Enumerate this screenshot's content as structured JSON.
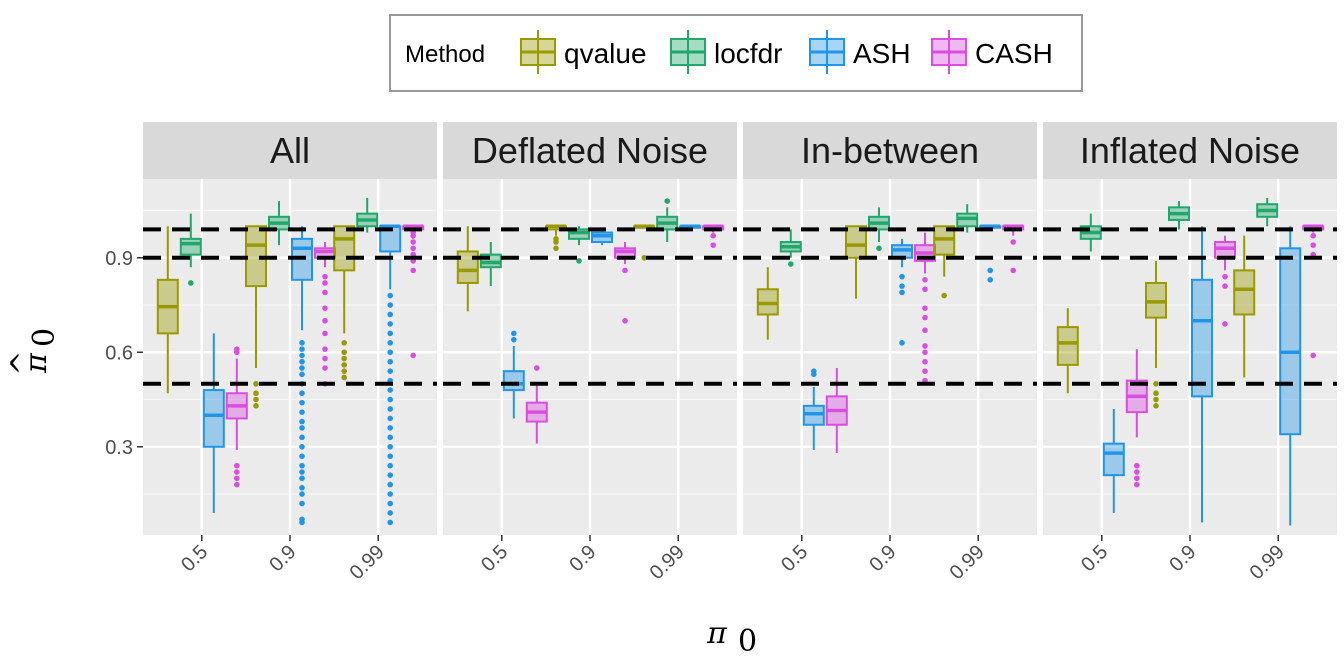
{
  "chart_data": {
    "type": "boxplot",
    "legend": {
      "title": "Method",
      "position": "top",
      "entries": [
        {
          "name": "qvalue",
          "color": "#999900"
        },
        {
          "name": "locfdr",
          "color": "#1fa86a"
        },
        {
          "name": "ASH",
          "color": "#2196e8"
        },
        {
          "name": "CASH",
          "color": "#d94ee0"
        }
      ]
    },
    "xlabel": "π",
    "xlabel_sub": "0",
    "ylabel": "π",
    "ylabel_hat": "^",
    "ylabel_sub": "0",
    "ylim": [
      0.02,
      1.15
    ],
    "yticks": [
      0.3,
      0.6,
      0.9
    ],
    "ytick_labels": [
      "0.3",
      "0.6",
      "0.9"
    ],
    "x_categories": [
      "0.5",
      "0.9",
      "0.99"
    ],
    "reference_lines": [
      0.5,
      0.9,
      0.99
    ],
    "panels": [
      {
        "name": "All",
        "boxes": [
          {
            "x": "0.5",
            "method": "qvalue",
            "min": 0.47,
            "q1": 0.66,
            "median": 0.745,
            "q3": 0.83,
            "max": 1.0,
            "outliers": []
          },
          {
            "x": "0.5",
            "method": "locfdr",
            "min": 0.87,
            "q1": 0.91,
            "median": 0.945,
            "q3": 0.96,
            "max": 1.04,
            "outliers": [
              0.82
            ]
          },
          {
            "x": "0.5",
            "method": "ASH",
            "min": 0.09,
            "q1": 0.3,
            "median": 0.4,
            "q3": 0.48,
            "max": 0.66,
            "outliers": []
          },
          {
            "x": "0.5",
            "method": "CASH",
            "min": 0.29,
            "q1": 0.39,
            "median": 0.43,
            "q3": 0.47,
            "max": 0.58,
            "outliers": [
              0.61,
              0.6,
              0.24,
              0.22,
              0.2,
              0.18
            ]
          },
          {
            "x": "0.9",
            "method": "qvalue",
            "min": 0.55,
            "q1": 0.81,
            "median": 0.94,
            "q3": 1.0,
            "max": 1.0,
            "outliers": [
              0.5,
              0.47,
              0.45,
              0.43
            ]
          },
          {
            "x": "0.9",
            "method": "locfdr",
            "min": 0.94,
            "q1": 0.99,
            "median": 1.01,
            "q3": 1.03,
            "max": 1.08,
            "outliers": []
          },
          {
            "x": "0.9",
            "method": "ASH",
            "min": 0.67,
            "q1": 0.83,
            "median": 0.93,
            "q3": 0.96,
            "max": 1.0,
            "outliers": [
              0.63,
              0.61,
              0.59,
              0.57,
              0.55,
              0.53,
              0.5,
              0.47,
              0.44,
              0.41,
              0.38,
              0.36,
              0.33,
              0.3,
              0.27,
              0.24,
              0.22,
              0.2,
              0.17,
              0.15,
              0.12,
              0.07,
              0.06
            ]
          },
          {
            "x": "0.9",
            "method": "CASH",
            "min": 0.87,
            "q1": 0.9,
            "median": 0.92,
            "q3": 0.93,
            "max": 0.95,
            "outliers": [
              0.84,
              0.82,
              0.79,
              0.74,
              0.7,
              0.66,
              0.61,
              0.58,
              0.55,
              0.5
            ]
          },
          {
            "x": "0.99",
            "method": "qvalue",
            "min": 0.66,
            "q1": 0.86,
            "median": 0.96,
            "q3": 1.0,
            "max": 1.0,
            "outliers": [
              0.63,
              0.6,
              0.58,
              0.56,
              0.54,
              0.52
            ]
          },
          {
            "x": "0.99",
            "method": "locfdr",
            "min": 0.98,
            "q1": 1.0,
            "median": 1.02,
            "q3": 1.04,
            "max": 1.09,
            "outliers": []
          },
          {
            "x": "0.99",
            "method": "ASH",
            "min": 0.8,
            "q1": 0.92,
            "median": 1.0,
            "q3": 1.0,
            "max": 1.0,
            "outliers": [
              0.78,
              0.75,
              0.72,
              0.69,
              0.66,
              0.63,
              0.6,
              0.57,
              0.54,
              0.51,
              0.48,
              0.45,
              0.42,
              0.39,
              0.36,
              0.33,
              0.3,
              0.27,
              0.24,
              0.21,
              0.18,
              0.15,
              0.12,
              0.09,
              0.06
            ]
          },
          {
            "x": "0.99",
            "method": "CASH",
            "min": 0.96,
            "q1": 0.99,
            "median": 1.0,
            "q3": 1.0,
            "max": 1.0,
            "outliers": [
              0.98,
              0.97,
              0.95,
              0.93,
              0.91,
              0.89,
              0.86,
              0.59
            ]
          }
        ]
      },
      {
        "name": "Deflated Noise",
        "boxes": [
          {
            "x": "0.5",
            "method": "qvalue",
            "min": 0.73,
            "q1": 0.82,
            "median": 0.86,
            "q3": 0.92,
            "max": 1.0,
            "outliers": []
          },
          {
            "x": "0.5",
            "method": "locfdr",
            "min": 0.81,
            "q1": 0.87,
            "median": 0.885,
            "q3": 0.91,
            "max": 0.95,
            "outliers": []
          },
          {
            "x": "0.5",
            "method": "ASH",
            "min": 0.39,
            "q1": 0.48,
            "median": 0.5,
            "q3": 0.54,
            "max": 0.62,
            "outliers": [
              0.66,
              0.64
            ]
          },
          {
            "x": "0.5",
            "method": "CASH",
            "min": 0.31,
            "q1": 0.38,
            "median": 0.41,
            "q3": 0.44,
            "max": 0.5,
            "outliers": [
              0.55
            ]
          },
          {
            "x": "0.9",
            "method": "qvalue",
            "min": 0.97,
            "q1": 0.99,
            "median": 1.0,
            "q3": 1.0,
            "max": 1.0,
            "outliers": [
              0.96,
              0.95,
              0.93
            ]
          },
          {
            "x": "0.9",
            "method": "locfdr",
            "min": 0.94,
            "q1": 0.96,
            "median": 0.98,
            "q3": 0.99,
            "max": 1.0,
            "outliers": [
              0.89
            ]
          },
          {
            "x": "0.9",
            "method": "ASH",
            "min": 0.94,
            "q1": 0.95,
            "median": 0.97,
            "q3": 0.98,
            "max": 0.99,
            "outliers": []
          },
          {
            "x": "0.9",
            "method": "CASH",
            "min": 0.88,
            "q1": 0.9,
            "median": 0.92,
            "q3": 0.93,
            "max": 0.95,
            "outliers": [
              0.86,
              0.7
            ]
          },
          {
            "x": "0.99",
            "method": "qvalue",
            "min": 1.0,
            "q1": 1.0,
            "median": 1.0,
            "q3": 1.0,
            "max": 1.0,
            "outliers": [
              0.9
            ]
          },
          {
            "x": "0.99",
            "method": "locfdr",
            "min": 0.95,
            "q1": 0.99,
            "median": 1.01,
            "q3": 1.03,
            "max": 1.06,
            "outliers": [
              1.08
            ]
          },
          {
            "x": "0.99",
            "method": "ASH",
            "min": 0.99,
            "q1": 1.0,
            "median": 1.0,
            "q3": 1.0,
            "max": 1.0,
            "outliers": []
          },
          {
            "x": "0.99",
            "method": "CASH",
            "min": 0.98,
            "q1": 0.99,
            "median": 1.0,
            "q3": 1.0,
            "max": 1.0,
            "outliers": [
              0.97,
              0.94
            ]
          }
        ]
      },
      {
        "name": "In-between",
        "boxes": [
          {
            "x": "0.5",
            "method": "qvalue",
            "min": 0.64,
            "q1": 0.72,
            "median": 0.755,
            "q3": 0.8,
            "max": 0.87,
            "outliers": []
          },
          {
            "x": "0.5",
            "method": "locfdr",
            "min": 0.9,
            "q1": 0.92,
            "median": 0.935,
            "q3": 0.95,
            "max": 0.99,
            "outliers": [
              0.88
            ]
          },
          {
            "x": "0.5",
            "method": "ASH",
            "min": 0.29,
            "q1": 0.37,
            "median": 0.405,
            "q3": 0.43,
            "max": 0.49,
            "outliers": [
              0.54,
              0.53
            ]
          },
          {
            "x": "0.5",
            "method": "CASH",
            "min": 0.28,
            "q1": 0.37,
            "median": 0.415,
            "q3": 0.46,
            "max": 0.55,
            "outliers": []
          },
          {
            "x": "0.9",
            "method": "qvalue",
            "min": 0.77,
            "q1": 0.9,
            "median": 0.94,
            "q3": 1.0,
            "max": 1.0,
            "outliers": []
          },
          {
            "x": "0.9",
            "method": "locfdr",
            "min": 0.95,
            "q1": 0.99,
            "median": 1.01,
            "q3": 1.03,
            "max": 1.06,
            "outliers": [
              0.93
            ]
          },
          {
            "x": "0.9",
            "method": "ASH",
            "min": 0.87,
            "q1": 0.9,
            "median": 0.925,
            "q3": 0.94,
            "max": 0.96,
            "outliers": [
              0.84,
              0.81,
              0.79,
              0.63
            ]
          },
          {
            "x": "0.9",
            "method": "CASH",
            "min": 0.85,
            "q1": 0.89,
            "median": 0.915,
            "q3": 0.94,
            "max": 0.98,
            "outliers": [
              0.83,
              0.8,
              0.74,
              0.71,
              0.67,
              0.62,
              0.6,
              0.57,
              0.54,
              0.51
            ]
          },
          {
            "x": "0.99",
            "method": "qvalue",
            "min": 0.84,
            "q1": 0.91,
            "median": 0.96,
            "q3": 1.0,
            "max": 1.0,
            "outliers": [
              0.78
            ]
          },
          {
            "x": "0.99",
            "method": "locfdr",
            "min": 0.98,
            "q1": 1.0,
            "median": 1.025,
            "q3": 1.04,
            "max": 1.07,
            "outliers": []
          },
          {
            "x": "0.99",
            "method": "ASH",
            "min": 0.99,
            "q1": 1.0,
            "median": 1.0,
            "q3": 1.0,
            "max": 1.0,
            "outliers": [
              0.86,
              0.83
            ]
          },
          {
            "x": "0.99",
            "method": "CASH",
            "min": 0.97,
            "q1": 0.99,
            "median": 1.0,
            "q3": 1.0,
            "max": 1.0,
            "outliers": [
              0.95,
              0.86
            ]
          }
        ]
      },
      {
        "name": "Inflated Noise",
        "boxes": [
          {
            "x": "0.5",
            "method": "qvalue",
            "min": 0.47,
            "q1": 0.56,
            "median": 0.63,
            "q3": 0.68,
            "max": 0.74,
            "outliers": []
          },
          {
            "x": "0.5",
            "method": "locfdr",
            "min": 0.92,
            "q1": 0.96,
            "median": 0.98,
            "q3": 1.0,
            "max": 1.04,
            "outliers": []
          },
          {
            "x": "0.5",
            "method": "ASH",
            "min": 0.09,
            "q1": 0.21,
            "median": 0.28,
            "q3": 0.31,
            "max": 0.42,
            "outliers": []
          },
          {
            "x": "0.5",
            "method": "CASH",
            "min": 0.33,
            "q1": 0.41,
            "median": 0.46,
            "q3": 0.51,
            "max": 0.61,
            "outliers": [
              0.24,
              0.22,
              0.2,
              0.18
            ]
          },
          {
            "x": "0.9",
            "method": "qvalue",
            "min": 0.55,
            "q1": 0.71,
            "median": 0.76,
            "q3": 0.82,
            "max": 0.89,
            "outliers": [
              0.5,
              0.47,
              0.45,
              0.43
            ]
          },
          {
            "x": "0.9",
            "method": "locfdr",
            "min": 0.99,
            "q1": 1.02,
            "median": 1.04,
            "q3": 1.06,
            "max": 1.08,
            "outliers": []
          },
          {
            "x": "0.9",
            "method": "ASH",
            "min": 0.06,
            "q1": 0.46,
            "median": 0.7,
            "q3": 0.83,
            "max": 1.0,
            "outliers": []
          },
          {
            "x": "0.9",
            "method": "CASH",
            "min": 0.86,
            "q1": 0.9,
            "median": 0.93,
            "q3": 0.95,
            "max": 0.97,
            "outliers": [
              0.84,
              0.81,
              0.69
            ]
          },
          {
            "x": "0.99",
            "method": "qvalue",
            "min": 0.52,
            "q1": 0.72,
            "median": 0.8,
            "q3": 0.86,
            "max": 0.97,
            "outliers": []
          },
          {
            "x": "0.99",
            "method": "locfdr",
            "min": 1.0,
            "q1": 1.03,
            "median": 1.05,
            "q3": 1.07,
            "max": 1.09,
            "outliers": []
          },
          {
            "x": "0.99",
            "method": "ASH",
            "min": 0.05,
            "q1": 0.34,
            "median": 0.6,
            "q3": 0.93,
            "max": 1.0,
            "outliers": []
          },
          {
            "x": "0.99",
            "method": "CASH",
            "min": 0.98,
            "q1": 0.99,
            "median": 1.0,
            "q3": 1.0,
            "max": 1.0,
            "outliers": [
              0.97,
              0.94,
              0.91,
              0.59
            ]
          }
        ]
      }
    ]
  }
}
